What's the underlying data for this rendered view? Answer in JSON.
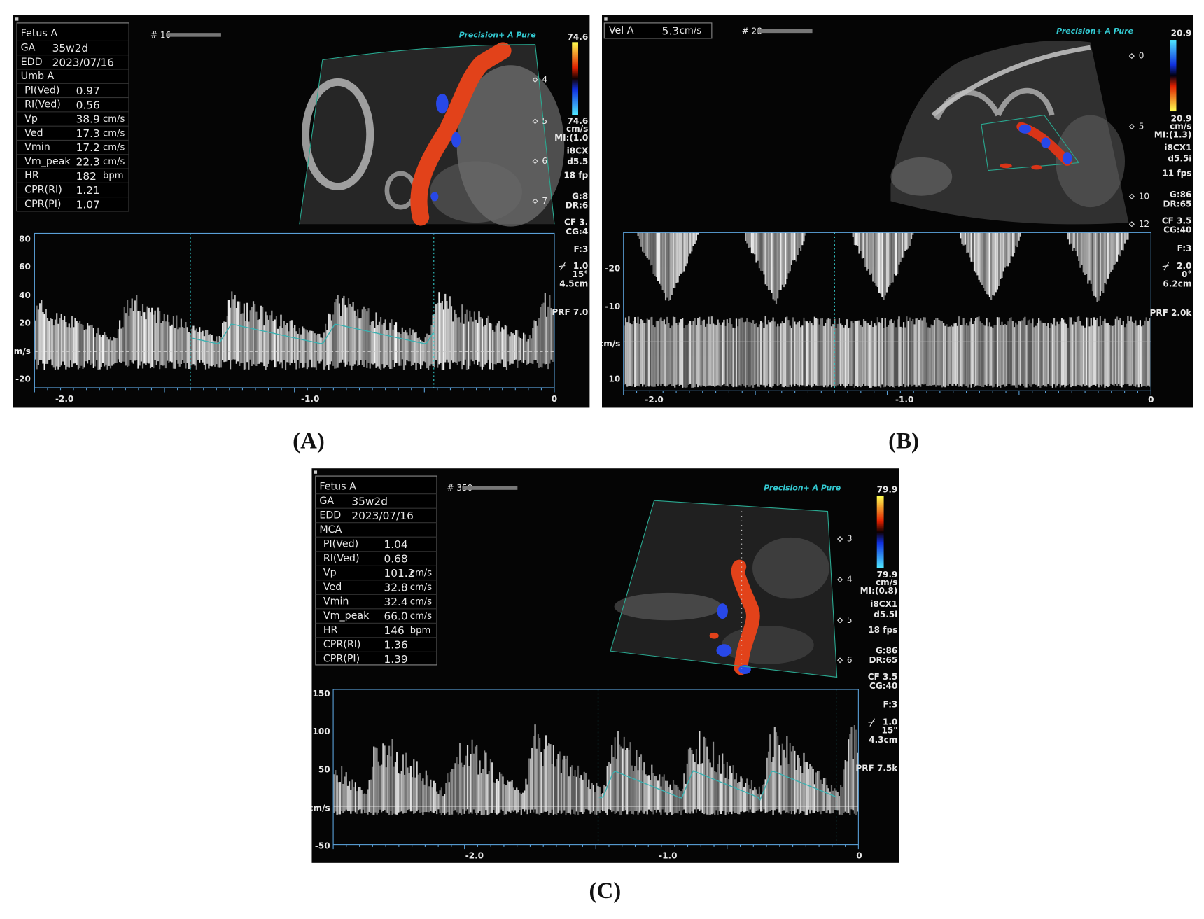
{
  "panels": [
    {
      "label": "(A)",
      "info": [
        {
          "name": "Fetus A"
        },
        {
          "name": "GA",
          "value": "35w2d"
        },
        {
          "name": "EDD",
          "value": "2023/07/16"
        },
        {
          "name": "Umb A"
        },
        {
          "name": "PI(Ved)",
          "value": "0.97"
        },
        {
          "name": "RI(Ved)",
          "value": "0.56"
        },
        {
          "name": "Vp",
          "value": "38.9",
          "unit": "cm/s"
        },
        {
          "name": "Ved",
          "value": "17.3",
          "unit": "cm/s"
        },
        {
          "name": "Vmin",
          "value": "17.2",
          "unit": "cm/s"
        },
        {
          "name": "Vm_peak",
          "value": "22.3",
          "unit": "cm/s"
        },
        {
          "name": "HR",
          "value": "182",
          "unit": "bpm"
        },
        {
          "name": "CPR(RI)",
          "value": "1.21"
        },
        {
          "name": "CPR(PI)",
          "value": "1.07"
        }
      ],
      "frame": "# 16",
      "brand": "Precision+ A Pure",
      "scale": [
        "74.6",
        "74.6",
        "cm/s",
        "MI:(1.0",
        "i8CX",
        "d5.5",
        "18 fp",
        "G:8",
        "DR:6",
        "CF 3.",
        "CG:4"
      ],
      "depth": [
        "4",
        "5",
        "6",
        "7"
      ],
      "doppler": {
        "y_labels": [
          "80",
          "60",
          "40",
          "20",
          "cm/s",
          "-20"
        ],
        "x_labels": [
          "-2.0",
          "-1.0",
          "0"
        ],
        "settings": [
          "F:3",
          "1.0",
          "15°",
          "4.5cm",
          "PRF 7.0"
        ]
      }
    },
    {
      "label": "(B)",
      "info": [
        {
          "name": "Vel A",
          "value": "5.3",
          "unit": "cm/s"
        }
      ],
      "frame": "# 28",
      "brand": "Precision+ A Pure",
      "scale": [
        "20.9",
        "20.9",
        "cm/s",
        "MI:(1.3)",
        "i8CX1",
        "d5.5i",
        "11 fps",
        "G:86",
        "DR:65",
        "CF 3.5",
        "CG:40"
      ],
      "depth": [
        "0",
        "5",
        "10",
        "12"
      ],
      "doppler": {
        "y_labels": [
          "-20",
          "-10",
          "cm/s",
          "10"
        ],
        "x_labels": [
          "-2.0",
          "-1.0",
          "0"
        ],
        "settings": [
          "F:3",
          "2.0",
          "0°",
          "6.2cm",
          "PRF 2.0k"
        ]
      }
    },
    {
      "label": "(C)",
      "info": [
        {
          "name": "Fetus A"
        },
        {
          "name": "GA",
          "value": "35w2d"
        },
        {
          "name": "EDD",
          "value": "2023/07/16"
        },
        {
          "name": "MCA"
        },
        {
          "name": "PI(Ved)",
          "value": "1.04"
        },
        {
          "name": "RI(Ved)",
          "value": "0.68"
        },
        {
          "name": "Vp",
          "value": "101.2",
          "unit": "cm/s"
        },
        {
          "name": "Ved",
          "value": "32.8",
          "unit": "cm/s"
        },
        {
          "name": "Vmin",
          "value": "32.4",
          "unit": "cm/s"
        },
        {
          "name": "Vm_peak",
          "value": "66.0",
          "unit": "cm/s"
        },
        {
          "name": "HR",
          "value": "146",
          "unit": "bpm"
        },
        {
          "name": "CPR(RI)",
          "value": "1.36"
        },
        {
          "name": "CPR(PI)",
          "value": "1.39"
        }
      ],
      "frame": "# 350",
      "brand": "Precision+ A Pure",
      "scale": [
        "79.9",
        "79.9",
        "cm/s",
        "MI:(0.8)",
        "i8CX1",
        "d5.5i",
        "18 fps",
        "G:86",
        "DR:65",
        "CF 3.5",
        "CG:40"
      ],
      "depth": [
        "3",
        "4",
        "5",
        "6"
      ],
      "doppler": {
        "y_labels": [
          "150",
          "100",
          "50",
          "cm/s",
          "-50"
        ],
        "x_labels": [
          "-2.0",
          "-1.0",
          "0"
        ],
        "settings": [
          "F:3",
          "1.0",
          "15°",
          "4.3cm",
          "PRF 7.5k"
        ]
      }
    }
  ]
}
